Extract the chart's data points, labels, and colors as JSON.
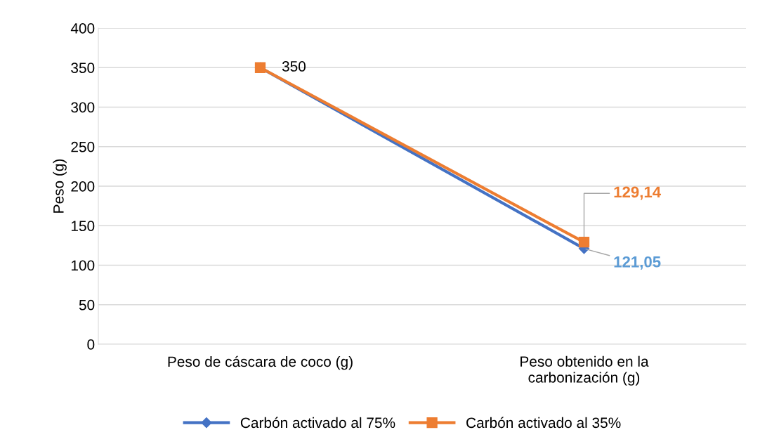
{
  "chart_data": {
    "type": "line",
    "ylabel": "Peso (g)",
    "categories": [
      "Peso de cáscara de coco (g)",
      "Peso obtenido en la\ncarbonización (g)"
    ],
    "series": [
      {
        "name": "Carbón activado al 75%",
        "color": "#4472c4",
        "values": [
          350,
          121.05
        ],
        "marker": "diamond",
        "value_labels": [
          null,
          "121,05"
        ]
      },
      {
        "name": "Carbón activado al 35%",
        "color": "#ed7d31",
        "values": [
          350,
          129.14
        ],
        "marker": "square",
        "value_labels": [
          "350",
          "129,14"
        ]
      }
    ],
    "ylim": [
      0,
      400
    ],
    "yticks": [
      0,
      50,
      100,
      150,
      200,
      250,
      300,
      350,
      400
    ],
    "grid": "y",
    "legend": "bottom",
    "line_style": "solid"
  }
}
